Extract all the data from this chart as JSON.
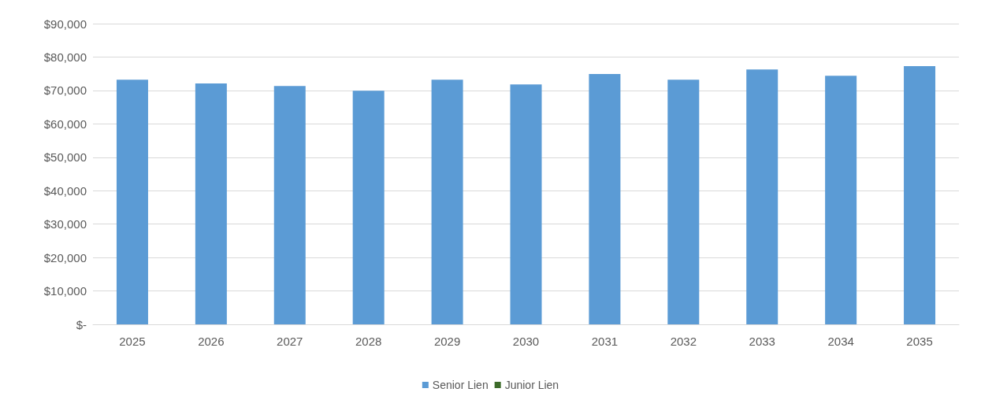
{
  "chart_data": {
    "type": "bar",
    "stacked": true,
    "categories": [
      "2025",
      "2026",
      "2027",
      "2028",
      "2029",
      "2030",
      "2031",
      "2032",
      "2033",
      "2034",
      "2035"
    ],
    "series": [
      {
        "name": "Senior Lien",
        "color": "#5b9bd5",
        "values": [
          73200,
          72100,
          71300,
          69900,
          73200,
          71800,
          74900,
          73200,
          76300,
          74400,
          77300
        ]
      },
      {
        "name": "Junior Lien",
        "color": "#3d6b2a",
        "values": [
          0,
          0,
          0,
          0,
          0,
          0,
          0,
          0,
          0,
          0,
          0
        ]
      }
    ],
    "ylim": [
      0,
      90000
    ],
    "yticks": [
      {
        "value": 0,
        "label": "$-"
      },
      {
        "value": 10000,
        "label": "$10,000"
      },
      {
        "value": 20000,
        "label": "$20,000"
      },
      {
        "value": 30000,
        "label": "$30,000"
      },
      {
        "value": 40000,
        "label": "$40,000"
      },
      {
        "value": 50000,
        "label": "$50,000"
      },
      {
        "value": 60000,
        "label": "$60,000"
      },
      {
        "value": 70000,
        "label": "$70,000"
      },
      {
        "value": 80000,
        "label": "$80,000"
      },
      {
        "value": 90000,
        "label": "$90,000"
      }
    ],
    "grid": "y",
    "legend": "bottom"
  }
}
